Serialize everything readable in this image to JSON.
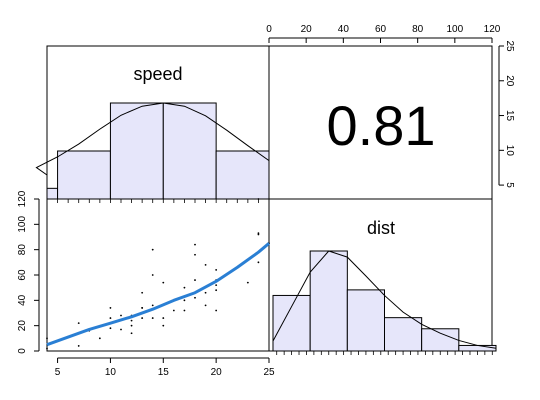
{
  "chart_data": {
    "type": "scatter-matrix",
    "variables": [
      "speed",
      "dist"
    ],
    "correlation": {
      "label": "0.81",
      "value": 0.81
    },
    "speed_histogram": {
      "bins": [
        [
          0,
          5,
          2
        ],
        [
          5,
          10,
          9
        ],
        [
          10,
          15,
          18
        ],
        [
          15,
          20,
          18
        ],
        [
          20,
          25,
          9
        ]
      ],
      "density_curve": [
        [
          0,
          4.5
        ],
        [
          3,
          5.9
        ],
        [
          5,
          7.9
        ],
        [
          7,
          10.3
        ],
        [
          9,
          13.1
        ],
        [
          11,
          15.7
        ],
        [
          13,
          17.4
        ],
        [
          15,
          18
        ],
        [
          17,
          17.4
        ],
        [
          19,
          15.6
        ],
        [
          21,
          12.9
        ],
        [
          23,
          10.0
        ],
        [
          25,
          7.2
        ]
      ]
    },
    "dist_histogram": {
      "bins": [
        [
          0,
          20,
          10
        ],
        [
          20,
          40,
          18
        ],
        [
          40,
          60,
          11
        ],
        [
          60,
          80,
          6
        ],
        [
          80,
          100,
          4
        ],
        [
          100,
          120,
          1
        ]
      ],
      "density_curve": [
        [
          0,
          1.8
        ],
        [
          10,
          8.0
        ],
        [
          20,
          14.2
        ],
        [
          30,
          18.0
        ],
        [
          40,
          16.9
        ],
        [
          50,
          13.5
        ],
        [
          60,
          10.0
        ],
        [
          70,
          7.0
        ],
        [
          80,
          4.8
        ],
        [
          90,
          3.2
        ],
        [
          100,
          1.9
        ],
        [
          110,
          1.0
        ],
        [
          120,
          0.5
        ]
      ]
    },
    "scatter_points": [
      [
        4,
        2
      ],
      [
        4,
        10
      ],
      [
        7,
        4
      ],
      [
        7,
        22
      ],
      [
        8,
        16
      ],
      [
        9,
        10
      ],
      [
        10,
        18
      ],
      [
        10,
        26
      ],
      [
        10,
        34
      ],
      [
        11,
        17
      ],
      [
        11,
        28
      ],
      [
        12,
        14
      ],
      [
        12,
        20
      ],
      [
        12,
        24
      ],
      [
        12,
        28
      ],
      [
        13,
        26
      ],
      [
        13,
        34
      ],
      [
        13,
        34
      ],
      [
        13,
        46
      ],
      [
        14,
        26
      ],
      [
        14,
        36
      ],
      [
        14,
        60
      ],
      [
        14,
        80
      ],
      [
        15,
        20
      ],
      [
        15,
        26
      ],
      [
        15,
        54
      ],
      [
        16,
        32
      ],
      [
        16,
        40
      ],
      [
        17,
        32
      ],
      [
        17,
        40
      ],
      [
        17,
        50
      ],
      [
        18,
        42
      ],
      [
        18,
        56
      ],
      [
        18,
        76
      ],
      [
        18,
        84
      ],
      [
        19,
        36
      ],
      [
        19,
        46
      ],
      [
        19,
        68
      ],
      [
        20,
        32
      ],
      [
        20,
        48
      ],
      [
        20,
        52
      ],
      [
        20,
        56
      ],
      [
        20,
        64
      ],
      [
        22,
        66
      ],
      [
        23,
        54
      ],
      [
        24,
        70
      ],
      [
        24,
        92
      ],
      [
        24,
        93
      ],
      [
        24,
        120
      ],
      [
        25,
        85
      ]
    ],
    "smooth_line": [
      [
        4,
        5
      ],
      [
        6,
        11
      ],
      [
        8,
        17
      ],
      [
        10,
        22
      ],
      [
        12,
        27
      ],
      [
        14,
        33
      ],
      [
        16,
        40
      ],
      [
        18,
        46
      ],
      [
        20,
        55
      ],
      [
        22,
        66
      ],
      [
        24,
        78
      ],
      [
        25,
        85
      ]
    ],
    "speed_axis": {
      "range": [
        4,
        25
      ],
      "ticks": [
        "5",
        "10",
        "15",
        "20",
        "25"
      ],
      "tick_values": [
        5,
        10,
        15,
        20,
        25
      ]
    },
    "dist_axis": {
      "range": [
        0,
        120
      ],
      "ticks": [
        "0",
        "20",
        "40",
        "60",
        "80",
        "100",
        "120"
      ],
      "tick_values": [
        0,
        20,
        40,
        60,
        80,
        100,
        120
      ]
    },
    "density_axis": {
      "range": [
        3,
        25
      ],
      "ticks": [
        "5",
        "10",
        "15",
        "20",
        "25"
      ],
      "tick_values": [
        5,
        10,
        15,
        20,
        25
      ]
    },
    "hist_fill": "#e6e6fa",
    "line_color": "#2a7fd4",
    "grid": false
  }
}
